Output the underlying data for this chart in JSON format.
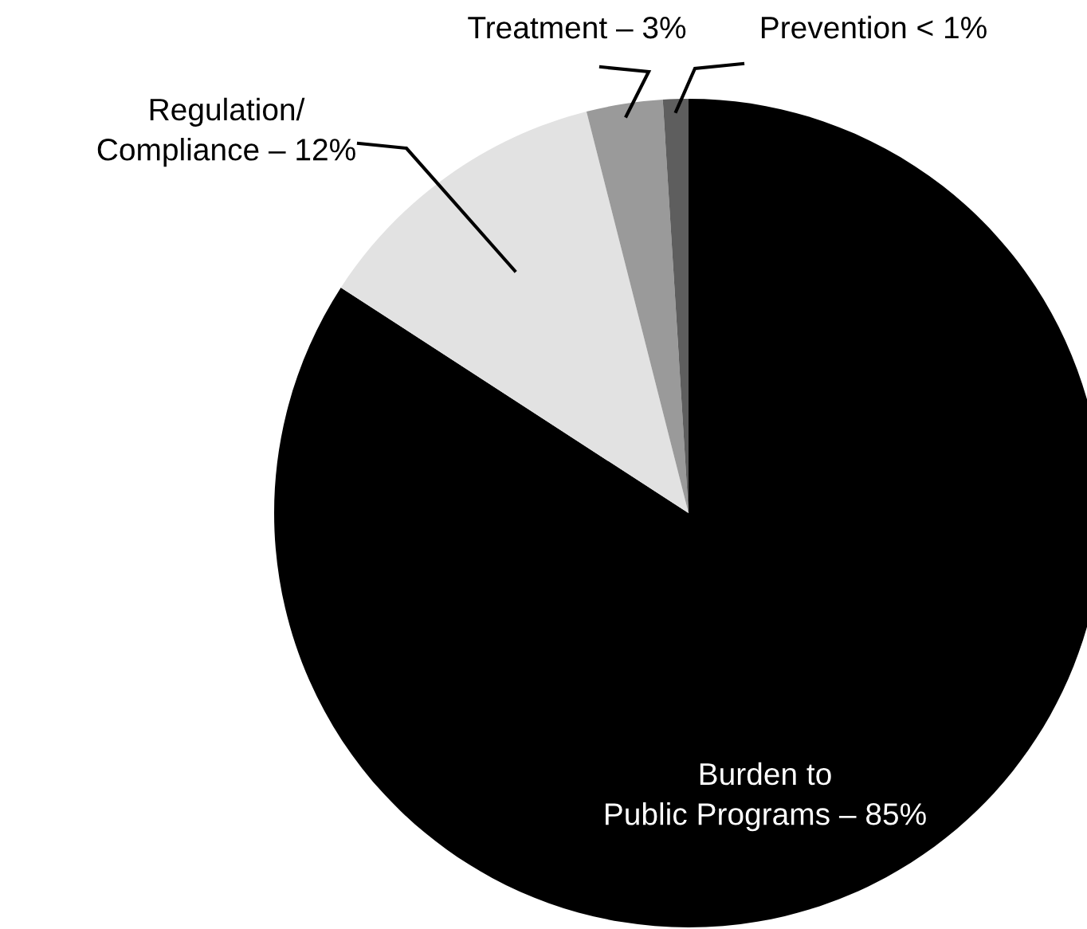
{
  "chart_data": {
    "type": "pie",
    "categories": [
      "Burden to\nPublic Programs – 85%",
      "Regulation/\nCompliance – 12%",
      "Treatment – 3%",
      "Prevention < 1%"
    ],
    "values": [
      85,
      12,
      3,
      1
    ],
    "colors": [
      "#000000",
      "#e2e2e2",
      "#9a9a9a",
      "#5e5e5e"
    ],
    "legend": false
  }
}
